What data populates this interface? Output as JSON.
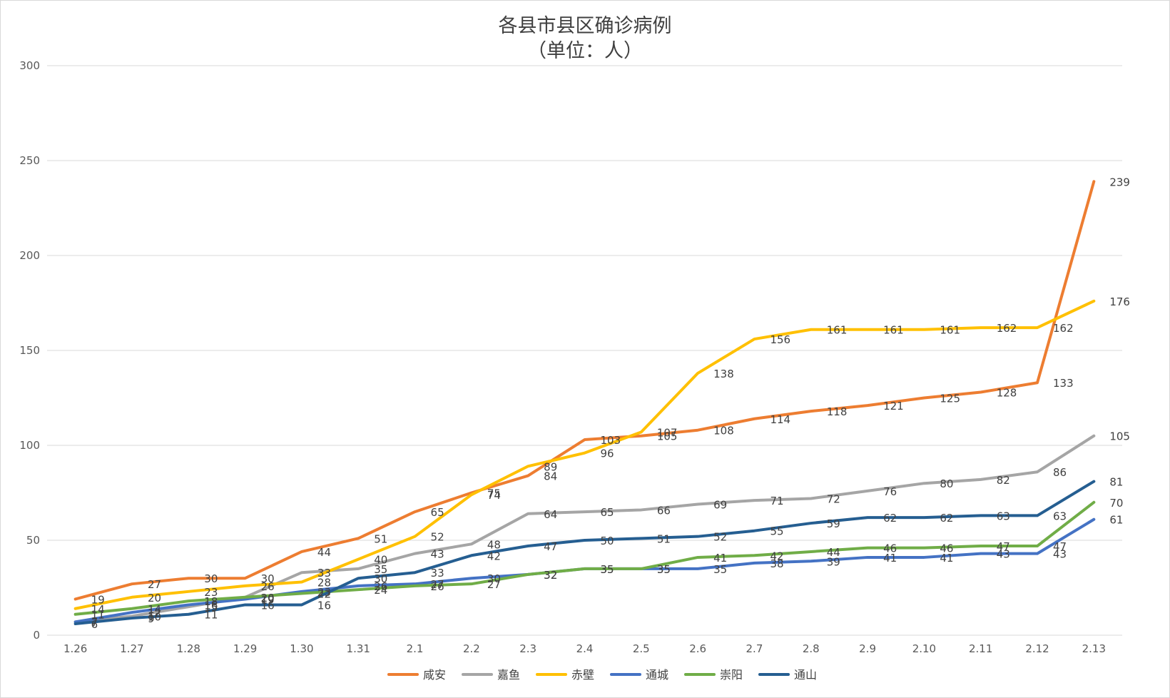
{
  "chart_data": {
    "type": "line",
    "title": "各县市县区确诊病例",
    "subtitle": "（单位：人）",
    "xlabel": "",
    "ylabel": "",
    "categories": [
      "1.26",
      "1.27",
      "1.28",
      "1.29",
      "1.30",
      "1.31",
      "2.1",
      "2.2",
      "2.3",
      "2.4",
      "2.5",
      "2.6",
      "2.7",
      "2.8",
      "2.9",
      "2.10",
      "2.11",
      "2.12",
      "2.13"
    ],
    "ylim": [
      0,
      300
    ],
    "yticks": [
      0,
      50,
      100,
      150,
      200,
      250,
      300
    ],
    "grid": true,
    "legend_position": "bottom",
    "series": [
      {
        "name": "咸安",
        "color": "#ED7D31",
        "values": [
          19,
          27,
          30,
          30,
          44,
          51,
          65,
          75,
          84,
          103,
          105,
          108,
          114,
          118,
          121,
          125,
          128,
          133,
          239
        ]
      },
      {
        "name": "嘉鱼",
        "color": "#A5A5A5",
        "values": [
          7,
          10,
          15,
          20,
          33,
          35,
          43,
          48,
          64,
          65,
          66,
          69,
          71,
          72,
          76,
          80,
          82,
          86,
          105
        ]
      },
      {
        "name": "赤壁",
        "color": "#FFC000",
        "values": [
          14,
          20,
          23,
          26,
          28,
          40,
          52,
          74,
          89,
          96,
          107,
          138,
          156,
          161,
          161,
          161,
          162,
          162,
          176
        ]
      },
      {
        "name": "通城",
        "color": "#4472C4",
        "values": [
          7,
          12,
          16,
          19,
          23,
          26,
          27,
          30,
          32,
          35,
          35,
          35,
          38,
          39,
          41,
          41,
          43,
          43,
          61
        ]
      },
      {
        "name": "崇阳",
        "color": "#70AD47",
        "values": [
          11,
          14,
          18,
          20,
          22,
          24,
          26,
          27,
          32,
          35,
          35,
          41,
          42,
          44,
          46,
          46,
          47,
          47,
          70
        ]
      },
      {
        "name": "通山",
        "color": "#255E91",
        "values": [
          6,
          9,
          11,
          16,
          16,
          30,
          33,
          42,
          47,
          50,
          51,
          52,
          55,
          59,
          62,
          62,
          63,
          63,
          81
        ]
      }
    ]
  }
}
